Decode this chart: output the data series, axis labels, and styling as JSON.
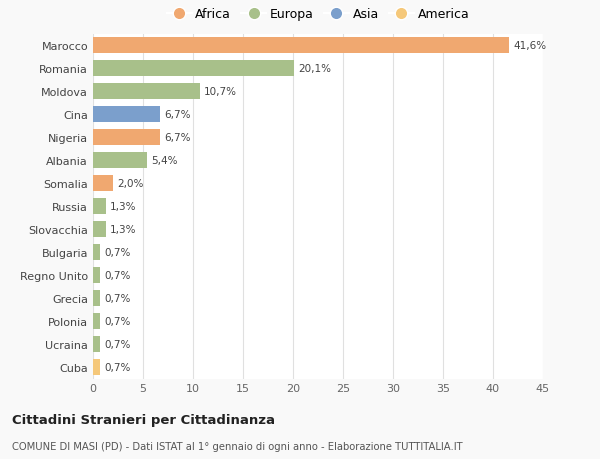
{
  "categories": [
    "Cuba",
    "Ucraina",
    "Polonia",
    "Grecia",
    "Regno Unito",
    "Bulgaria",
    "Slovacchia",
    "Russia",
    "Somalia",
    "Albania",
    "Nigeria",
    "Cina",
    "Moldova",
    "Romania",
    "Marocco"
  ],
  "values": [
    0.7,
    0.7,
    0.7,
    0.7,
    0.7,
    0.7,
    1.3,
    1.3,
    2.0,
    5.4,
    6.7,
    6.7,
    10.7,
    20.1,
    41.6
  ],
  "labels": [
    "0,7%",
    "0,7%",
    "0,7%",
    "0,7%",
    "0,7%",
    "0,7%",
    "1,3%",
    "1,3%",
    "2,0%",
    "5,4%",
    "6,7%",
    "6,7%",
    "10,7%",
    "20,1%",
    "41,6%"
  ],
  "colors": [
    "#F5C87A",
    "#A8C08A",
    "#A8C08A",
    "#A8C08A",
    "#A8C08A",
    "#A8C08A",
    "#A8C08A",
    "#A8C08A",
    "#F0A870",
    "#A8C08A",
    "#F0A870",
    "#7B9FCC",
    "#A8C08A",
    "#A8C08A",
    "#F0A870"
  ],
  "legend_labels": [
    "Africa",
    "Europa",
    "Asia",
    "America"
  ],
  "legend_colors": [
    "#F0A870",
    "#A8C08A",
    "#7B9FCC",
    "#F5C87A"
  ],
  "title": "Cittadini Stranieri per Cittadinanza",
  "subtitle": "COMUNE DI MASI (PD) - Dati ISTAT al 1° gennaio di ogni anno - Elaborazione TUTTITALIA.IT",
  "xlim": [
    0,
    45
  ],
  "xticks": [
    0,
    5,
    10,
    15,
    20,
    25,
    30,
    35,
    40,
    45
  ],
  "bg_color": "#f9f9f9",
  "bar_bg_color": "#ffffff",
  "grid_color": "#e0e0e0"
}
